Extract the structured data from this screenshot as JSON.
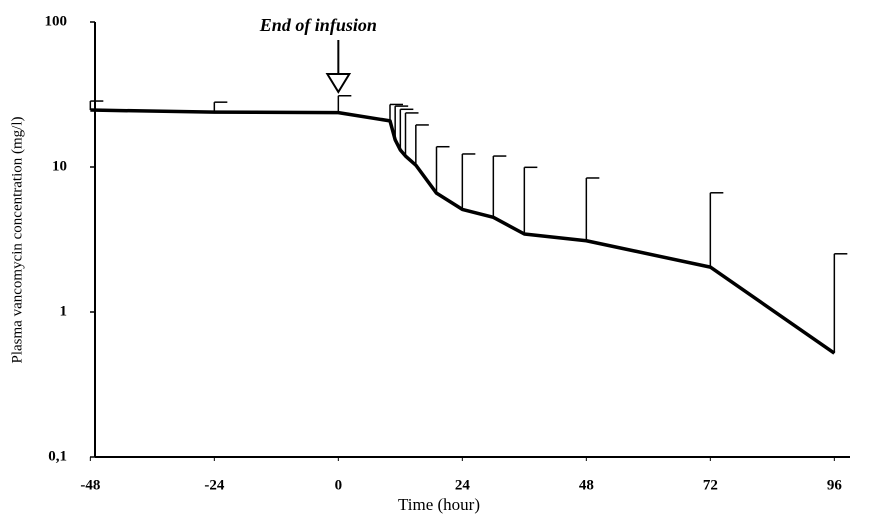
{
  "chart_data": {
    "type": "line",
    "xlabel": "Time (hour)",
    "ylabel": "Plasma vancomycin concentration (mg/l)",
    "annotation": {
      "text": "End of infusion",
      "x": 0
    },
    "x": [
      -48,
      -24,
      0,
      10,
      11,
      12,
      13,
      15,
      19,
      24,
      30,
      36,
      48,
      72,
      96
    ],
    "series": [
      {
        "color": "#000000",
        "values": [
          24.7,
          23.9,
          23.7,
          20.8,
          15.4,
          13.1,
          11.9,
          10.3,
          6.6,
          5.1,
          4.5,
          3.45,
          3.1,
          2.04,
          0.52
        ],
        "errors": [
          3.8,
          4.1,
          7.3,
          6.2,
          10.9,
          11.9,
          11.7,
          9.2,
          7.2,
          7.2,
          7.4,
          6.5,
          5.3,
          4.6,
          2.0
        ]
      }
    ],
    "xlim": [
      -50,
      100
    ],
    "xticks": [
      -48,
      -24,
      0,
      24,
      48,
      72,
      96
    ],
    "ylim": [
      0.1,
      100
    ],
    "yticks": [
      {
        "value": 0.1,
        "label": "0,1"
      },
      1,
      10,
      100
    ],
    "log_y": true
  }
}
